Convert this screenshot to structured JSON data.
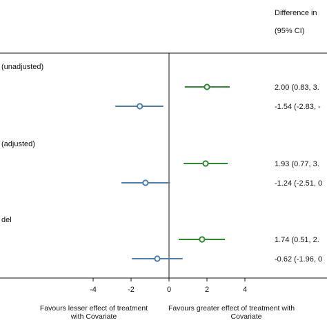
{
  "chart_data": {
    "type": "forest",
    "header": {
      "line1": "Difference in",
      "line2": "(95% CI)"
    },
    "x_ticks": [
      -4,
      -2,
      0,
      2,
      4
    ],
    "x_tick_labels": [
      "-4",
      "-2",
      "0",
      "2",
      "4"
    ],
    "xlim": [
      -6.2,
      4.7
    ],
    "reference_line": 0,
    "groups": [
      {
        "label": "(unadjusted)",
        "rows": [
          {
            "estimate": 2.0,
            "lower": 0.83,
            "upper": 3.2,
            "color": "#2e8b2e",
            "text": "2.00 (0.83, 3."
          },
          {
            "estimate": -1.54,
            "lower": -2.83,
            "upper": -0.3,
            "color": "#4a7fb5",
            "text": "-1.54 (-2.83, -"
          }
        ]
      },
      {
        "label": "(adjusted)",
        "rows": [
          {
            "estimate": 1.93,
            "lower": 0.77,
            "upper": 3.1,
            "color": "#2e8b2e",
            "text": "1.93 (0.77, 3."
          },
          {
            "estimate": -1.24,
            "lower": -2.51,
            "upper": 0.05,
            "color": "#4a7fb5",
            "text": "-1.24 (-2.51, 0"
          }
        ]
      },
      {
        "label": "del",
        "rows": [
          {
            "estimate": 1.74,
            "lower": 0.51,
            "upper": 2.95,
            "color": "#2e8b2e",
            "text": "1.74 (0.51, 2."
          },
          {
            "estimate": -0.62,
            "lower": -1.96,
            "upper": 0.72,
            "color": "#4a7fb5",
            "text": "-0.62 (-1.96, 0"
          }
        ]
      }
    ],
    "favours_left": [
      "Favours lesser effect of treatment",
      "with Covariate"
    ],
    "favours_right": [
      "Favours greater effect of treatment with",
      "Covariate"
    ]
  }
}
